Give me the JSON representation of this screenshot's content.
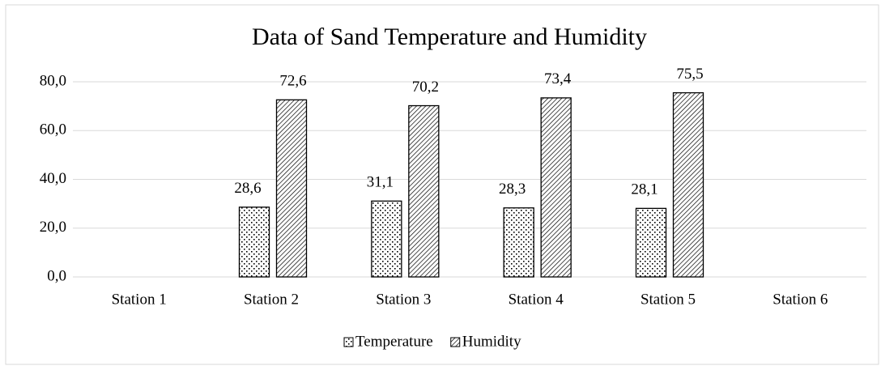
{
  "chart_data": {
    "type": "bar",
    "title": "Data of Sand Temperature and Humidity",
    "categories": [
      "Station 1",
      "Station 2",
      "Station 3",
      "Station 4",
      "Station 5",
      "Station 6"
    ],
    "series": [
      {
        "name": "Temperature",
        "color": "#000000",
        "pattern": "dots",
        "values": [
          null,
          28.6,
          31.1,
          28.3,
          28.1,
          null
        ],
        "value_labels": [
          null,
          "28,6",
          "31,1",
          "28,3",
          "28,1",
          null
        ]
      },
      {
        "name": "Humidity",
        "color": "#000000",
        "pattern": "hatch",
        "values": [
          null,
          72.6,
          70.2,
          73.4,
          75.5,
          null
        ],
        "value_labels": [
          null,
          "72,6",
          "70,2",
          "73,4",
          "75,5",
          null
        ]
      }
    ],
    "ylim": [
      0,
      80
    ],
    "yticks": [
      {
        "value": 0,
        "label": "0,0"
      },
      {
        "value": 20,
        "label": "20,0"
      },
      {
        "value": 40,
        "label": "40,0"
      },
      {
        "value": 60,
        "label": "60,0"
      },
      {
        "value": 80,
        "label": "80,0"
      }
    ],
    "grid": true,
    "legend": "bottom"
  }
}
